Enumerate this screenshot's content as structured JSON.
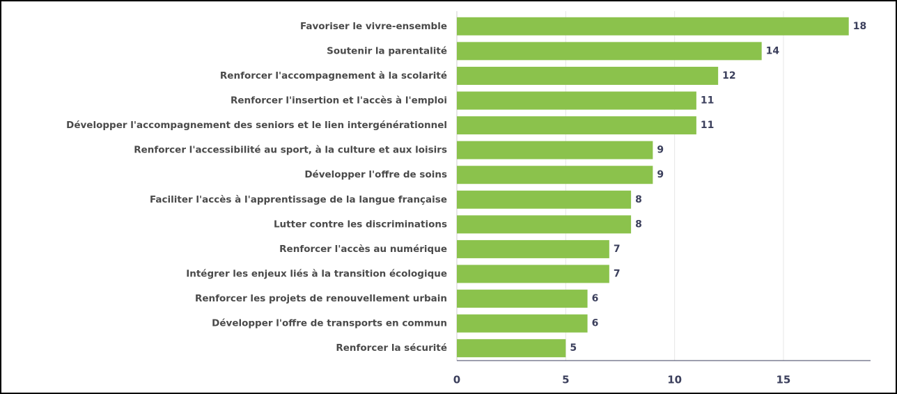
{
  "chart_data": {
    "type": "bar",
    "orientation": "horizontal",
    "categories": [
      "Favoriser le vivre-ensemble",
      "Soutenir la parentalité",
      "Renforcer l'accompagnement à la scolarité",
      "Renforcer l'insertion et l'accès à l'emploi",
      "Développer l'accompagnement des seniors et le lien intergénérationnel",
      "Renforcer l'accessibilité au sport, à la culture et aux loisirs",
      "Développer l'offre de soins",
      "Faciliter l'accès à l'apprentissage de la langue française",
      "Lutter contre les discriminations",
      "Renforcer l'accès au numérique",
      "Intégrer les enjeux liés à la transition écologique",
      "Renforcer les projets de renouvellement urbain",
      "Développer l'offre de transports en commun",
      "Renforcer la sécurité"
    ],
    "values": [
      18,
      14,
      12,
      11,
      11,
      9,
      9,
      8,
      8,
      7,
      7,
      6,
      6,
      5
    ],
    "color": "#8bc24c",
    "xlim": [
      0,
      19
    ],
    "xticks": [
      0,
      5,
      10,
      15
    ],
    "grid": true
  }
}
